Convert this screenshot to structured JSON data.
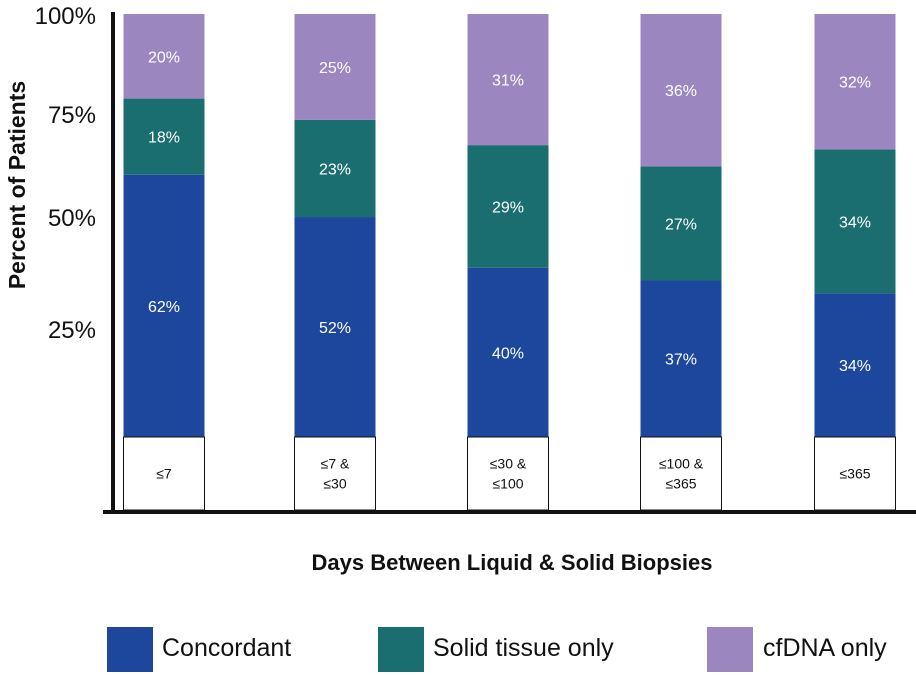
{
  "chart_data": {
    "type": "bar",
    "stacked": true,
    "orientation": "vertical",
    "categories": [
      [
        "≤7"
      ],
      [
        "≤7 &",
        "≤30"
      ],
      [
        "≤30 &",
        "≤100"
      ],
      [
        "≤100 &",
        "≤365"
      ],
      [
        "≤365"
      ]
    ],
    "series": [
      {
        "name": "Concordant",
        "color": "#1c479d",
        "values": [
          62,
          52,
          40,
          37,
          34
        ]
      },
      {
        "name": "Solid tissue only",
        "color": "#1a6e6f",
        "values": [
          18,
          23,
          29,
          27,
          34
        ]
      },
      {
        "name": "cfDNA only",
        "color": "#9b86bf",
        "values": [
          20,
          25,
          31,
          36,
          32
        ]
      }
    ],
    "value_labels": [
      [
        "62%",
        "52%",
        "40%",
        "37%",
        "34%"
      ],
      [
        "18%",
        "23%",
        "29%",
        "27%",
        "34%"
      ],
      [
        "20%",
        "25%",
        "31%",
        "36%",
        "32%"
      ]
    ],
    "yticks": [
      "25%",
      "50%",
      "75%",
      "100%"
    ],
    "ylabel": "Percent of Patients",
    "xlabel": "Days Between Liquid & Solid Biopsies",
    "legend_position": "bottom"
  }
}
